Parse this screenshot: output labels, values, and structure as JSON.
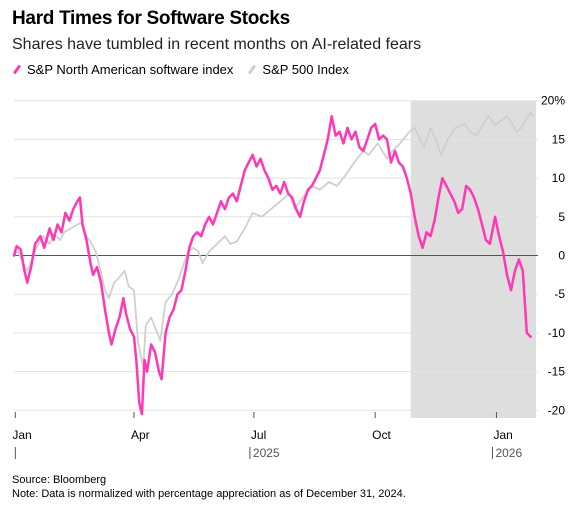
{
  "title": "Hard Times for Software Stocks",
  "subtitle": "Shares have tumbled in recent months on AI-related fears",
  "legend": {
    "software_label": "S&P North American software index",
    "sp500_label": "S&P 500 Index"
  },
  "colors": {
    "software": "#ff38b3",
    "sp500": "#cfcfcf",
    "shade": "#dedede",
    "zero_line": "#555555",
    "grid": "#e2e2e2"
  },
  "footer": {
    "source": "Source: Bloomberg",
    "note": "Note: Data is normalized with percentage appreciation as of December 31, 2024."
  },
  "chart_data": {
    "type": "line",
    "xlabel": "",
    "ylabel": "",
    "x_tick_labels": [
      "Jan",
      "Apr",
      "Jul",
      "Oct",
      "Jan"
    ],
    "x_tick_dates": [
      "2025-01-01",
      "2025-04-01",
      "2025-07-01",
      "2025-10-01",
      "2026-01-01"
    ],
    "year_labels": [
      {
        "label": "2025",
        "date": "2025-07-01"
      },
      {
        "label": "2026",
        "date": "2026-01-01"
      }
    ],
    "x_range": [
      "2024-12-31",
      "2026-01-31"
    ],
    "y_ticks": [
      20,
      15,
      10,
      5,
      0,
      -5,
      -10,
      -15,
      -20
    ],
    "y_tick_labels": [
      "20%",
      "15",
      "10",
      "5",
      "0",
      "-5",
      "-10",
      "-15",
      "-20"
    ],
    "ylim": [
      -21,
      21
    ],
    "grid": true,
    "shaded_region": [
      "2025-10-28",
      "2026-01-31"
    ],
    "series": [
      {
        "name": "S&P North American software index",
        "points": [
          [
            "2024-12-31",
            0
          ],
          [
            "2025-01-02",
            1.2
          ],
          [
            "2025-01-05",
            0.8
          ],
          [
            "2025-01-08",
            -2.0
          ],
          [
            "2025-01-10",
            -3.5
          ],
          [
            "2025-01-13",
            -1.5
          ],
          [
            "2025-01-16",
            1.5
          ],
          [
            "2025-01-20",
            2.5
          ],
          [
            "2025-01-23",
            1.0
          ],
          [
            "2025-01-27",
            3.5
          ],
          [
            "2025-01-30",
            2.0
          ],
          [
            "2025-02-02",
            4.0
          ],
          [
            "2025-02-05",
            3.0
          ],
          [
            "2025-02-08",
            5.5
          ],
          [
            "2025-02-11",
            4.5
          ],
          [
            "2025-02-14",
            6.0
          ],
          [
            "2025-02-17",
            7.0
          ],
          [
            "2025-02-19",
            7.5
          ],
          [
            "2025-02-21",
            4.0
          ],
          [
            "2025-02-24",
            2.0
          ],
          [
            "2025-02-27",
            -1.0
          ],
          [
            "2025-03-01",
            -2.5
          ],
          [
            "2025-03-04",
            -1.5
          ],
          [
            "2025-03-07",
            -3.5
          ],
          [
            "2025-03-10",
            -7.0
          ],
          [
            "2025-03-13",
            -10.0
          ],
          [
            "2025-03-15",
            -11.5
          ],
          [
            "2025-03-18",
            -9.5
          ],
          [
            "2025-03-21",
            -8.0
          ],
          [
            "2025-03-24",
            -5.5
          ],
          [
            "2025-03-26",
            -7.5
          ],
          [
            "2025-03-29",
            -9.5
          ],
          [
            "2025-04-01",
            -10.5
          ],
          [
            "2025-04-03",
            -14.0
          ],
          [
            "2025-04-05",
            -19.0
          ],
          [
            "2025-04-07",
            -20.5
          ],
          [
            "2025-04-09",
            -13.5
          ],
          [
            "2025-04-11",
            -15.0
          ],
          [
            "2025-04-14",
            -11.5
          ],
          [
            "2025-04-17",
            -12.5
          ],
          [
            "2025-04-20",
            -15.0
          ],
          [
            "2025-04-22",
            -16.0
          ],
          [
            "2025-04-25",
            -10.0
          ],
          [
            "2025-04-28",
            -8.0
          ],
          [
            "2025-05-01",
            -7.0
          ],
          [
            "2025-05-04",
            -5.0
          ],
          [
            "2025-05-07",
            -4.5
          ],
          [
            "2025-05-10",
            -2.0
          ],
          [
            "2025-05-13",
            1.0
          ],
          [
            "2025-05-16",
            2.5
          ],
          [
            "2025-05-19",
            3.0
          ],
          [
            "2025-05-22",
            2.5
          ],
          [
            "2025-05-25",
            4.0
          ],
          [
            "2025-05-28",
            5.0
          ],
          [
            "2025-05-31",
            4.0
          ],
          [
            "2025-06-03",
            5.5
          ],
          [
            "2025-06-06",
            7.0
          ],
          [
            "2025-06-09",
            6.0
          ],
          [
            "2025-06-12",
            7.5
          ],
          [
            "2025-06-15",
            8.0
          ],
          [
            "2025-06-18",
            7.0
          ],
          [
            "2025-06-21",
            9.0
          ],
          [
            "2025-06-24",
            11.0
          ],
          [
            "2025-06-27",
            12.0
          ],
          [
            "2025-06-30",
            13.0
          ],
          [
            "2025-07-03",
            11.5
          ],
          [
            "2025-07-06",
            12.5
          ],
          [
            "2025-07-09",
            11.0
          ],
          [
            "2025-07-12",
            10.0
          ],
          [
            "2025-07-15",
            8.5
          ],
          [
            "2025-07-18",
            9.0
          ],
          [
            "2025-07-21",
            8.0
          ],
          [
            "2025-07-24",
            9.5
          ],
          [
            "2025-07-27",
            8.0
          ],
          [
            "2025-07-30",
            7.5
          ],
          [
            "2025-08-02",
            6.0
          ],
          [
            "2025-08-05",
            5.0
          ],
          [
            "2025-08-08",
            7.0
          ],
          [
            "2025-08-11",
            8.5
          ],
          [
            "2025-08-14",
            9.0
          ],
          [
            "2025-08-17",
            10.0
          ],
          [
            "2025-08-20",
            11.0
          ],
          [
            "2025-08-23",
            13.0
          ],
          [
            "2025-08-26",
            15.0
          ],
          [
            "2025-08-29",
            18.0
          ],
          [
            "2025-09-01",
            15.5
          ],
          [
            "2025-09-04",
            16.0
          ],
          [
            "2025-09-07",
            14.5
          ],
          [
            "2025-09-10",
            16.5
          ],
          [
            "2025-09-13",
            15.0
          ],
          [
            "2025-09-16",
            16.0
          ],
          [
            "2025-09-19",
            14.0
          ],
          [
            "2025-09-22",
            13.5
          ],
          [
            "2025-09-25",
            15.0
          ],
          [
            "2025-09-28",
            16.5
          ],
          [
            "2025-10-01",
            17.0
          ],
          [
            "2025-10-04",
            15.0
          ],
          [
            "2025-10-07",
            15.5
          ],
          [
            "2025-10-10",
            15.0
          ],
          [
            "2025-10-13",
            12.0
          ],
          [
            "2025-10-16",
            13.5
          ],
          [
            "2025-10-19",
            12.0
          ],
          [
            "2025-10-22",
            11.5
          ],
          [
            "2025-10-25",
            10.0
          ],
          [
            "2025-10-28",
            8.0
          ],
          [
            "2025-10-31",
            5.0
          ],
          [
            "2025-11-03",
            2.5
          ],
          [
            "2025-11-06",
            1.0
          ],
          [
            "2025-11-09",
            3.0
          ],
          [
            "2025-11-12",
            2.5
          ],
          [
            "2025-11-15",
            4.5
          ],
          [
            "2025-11-18",
            7.5
          ],
          [
            "2025-11-21",
            10.0
          ],
          [
            "2025-11-24",
            9.0
          ],
          [
            "2025-11-27",
            8.0
          ],
          [
            "2025-11-30",
            7.0
          ],
          [
            "2025-12-03",
            5.5
          ],
          [
            "2025-12-06",
            6.0
          ],
          [
            "2025-12-09",
            9.0
          ],
          [
            "2025-12-12",
            8.5
          ],
          [
            "2025-12-15",
            7.5
          ],
          [
            "2025-12-18",
            6.0
          ],
          [
            "2025-12-21",
            4.0
          ],
          [
            "2025-12-24",
            2.0
          ],
          [
            "2025-12-27",
            1.5
          ],
          [
            "2025-12-31",
            5.0
          ],
          [
            "2026-01-03",
            2.5
          ],
          [
            "2026-01-06",
            0.5
          ],
          [
            "2026-01-09",
            -2.5
          ],
          [
            "2026-01-12",
            -4.5
          ],
          [
            "2026-01-15",
            -2.0
          ],
          [
            "2026-01-18",
            -0.5
          ],
          [
            "2026-01-21",
            -2.0
          ],
          [
            "2026-01-24",
            -10.0
          ],
          [
            "2026-01-27",
            -10.5
          ]
        ]
      },
      {
        "name": "S&P 500 Index",
        "points": [
          [
            "2024-12-31",
            0
          ],
          [
            "2025-01-03",
            0.5
          ],
          [
            "2025-01-07",
            -1.0
          ],
          [
            "2025-01-10",
            -2.0
          ],
          [
            "2025-01-14",
            -0.5
          ],
          [
            "2025-01-17",
            1.0
          ],
          [
            "2025-01-22",
            2.5
          ],
          [
            "2025-01-27",
            1.5
          ],
          [
            "2025-01-30",
            2.8
          ],
          [
            "2025-02-04",
            2.0
          ],
          [
            "2025-02-07",
            3.0
          ],
          [
            "2025-02-12",
            3.5
          ],
          [
            "2025-02-17",
            4.0
          ],
          [
            "2025-02-20",
            4.2
          ],
          [
            "2025-02-24",
            2.5
          ],
          [
            "2025-02-28",
            1.5
          ],
          [
            "2025-03-03",
            0.5
          ],
          [
            "2025-03-06",
            -1.5
          ],
          [
            "2025-03-10",
            -4.5
          ],
          [
            "2025-03-13",
            -5.5
          ],
          [
            "2025-03-17",
            -3.5
          ],
          [
            "2025-03-20",
            -3.0
          ],
          [
            "2025-03-25",
            -2.0
          ],
          [
            "2025-03-28",
            -4.0
          ],
          [
            "2025-04-01",
            -4.5
          ],
          [
            "2025-04-04",
            -11.0
          ],
          [
            "2025-04-08",
            -14.5
          ],
          [
            "2025-04-10",
            -9.0
          ],
          [
            "2025-04-14",
            -8.0
          ],
          [
            "2025-04-21",
            -11.0
          ],
          [
            "2025-04-25",
            -6.0
          ],
          [
            "2025-04-30",
            -5.0
          ],
          [
            "2025-05-05",
            -3.0
          ],
          [
            "2025-05-12",
            0.5
          ],
          [
            "2025-05-16",
            1.0
          ],
          [
            "2025-05-20",
            0.5
          ],
          [
            "2025-05-23",
            -1.0
          ],
          [
            "2025-05-28",
            0.5
          ],
          [
            "2025-06-03",
            1.5
          ],
          [
            "2025-06-09",
            2.5
          ],
          [
            "2025-06-13",
            1.5
          ],
          [
            "2025-06-18",
            1.8
          ],
          [
            "2025-06-24",
            3.5
          ],
          [
            "2025-06-30",
            5.5
          ],
          [
            "2025-07-07",
            5.0
          ],
          [
            "2025-07-14",
            6.0
          ],
          [
            "2025-07-21",
            7.0
          ],
          [
            "2025-07-28",
            8.0
          ],
          [
            "2025-08-01",
            6.0
          ],
          [
            "2025-08-07",
            7.5
          ],
          [
            "2025-08-14",
            9.0
          ],
          [
            "2025-08-20",
            8.5
          ],
          [
            "2025-08-27",
            9.5
          ],
          [
            "2025-09-02",
            9.0
          ],
          [
            "2025-09-09",
            10.5
          ],
          [
            "2025-09-15",
            12.0
          ],
          [
            "2025-09-22",
            13.5
          ],
          [
            "2025-09-26",
            13.0
          ],
          [
            "2025-10-03",
            14.5
          ],
          [
            "2025-10-10",
            12.5
          ],
          [
            "2025-10-14",
            13.5
          ],
          [
            "2025-10-20",
            14.5
          ],
          [
            "2025-10-27",
            16.0
          ],
          [
            "2025-10-31",
            16.5
          ],
          [
            "2025-11-04",
            15.0
          ],
          [
            "2025-11-07",
            14.0
          ],
          [
            "2025-11-12",
            16.5
          ],
          [
            "2025-11-17",
            14.5
          ],
          [
            "2025-11-20",
            13.0
          ],
          [
            "2025-11-25",
            15.0
          ],
          [
            "2025-12-01",
            16.5
          ],
          [
            "2025-12-08",
            17.0
          ],
          [
            "2025-12-12",
            16.0
          ],
          [
            "2025-12-17",
            15.5
          ],
          [
            "2025-12-22",
            17.0
          ],
          [
            "2025-12-26",
            18.0
          ],
          [
            "2025-12-31",
            16.8
          ],
          [
            "2026-01-05",
            17.5
          ],
          [
            "2026-01-09",
            18.0
          ],
          [
            "2026-01-13",
            17.0
          ],
          [
            "2026-01-16",
            16.0
          ],
          [
            "2026-01-20",
            16.5
          ],
          [
            "2026-01-23",
            17.5
          ],
          [
            "2026-01-27",
            18.5
          ],
          [
            "2026-01-29",
            18.0
          ]
        ]
      }
    ]
  }
}
